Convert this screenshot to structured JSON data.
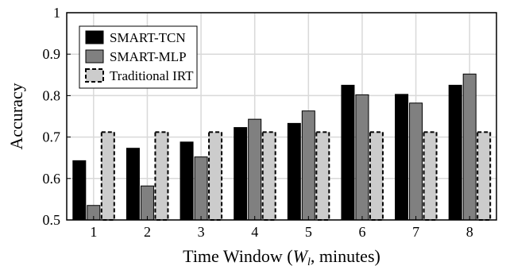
{
  "chart_data": {
    "type": "bar",
    "categories": [
      "1",
      "2",
      "3",
      "4",
      "5",
      "6",
      "7",
      "8"
    ],
    "series": [
      {
        "name": "SMART-TCN",
        "values": [
          0.643,
          0.673,
          0.688,
          0.723,
          0.733,
          0.825,
          0.803,
          0.825
        ],
        "color": "#000000",
        "style": "solid"
      },
      {
        "name": "SMART-MLP",
        "values": [
          0.535,
          0.582,
          0.652,
          0.743,
          0.763,
          0.802,
          0.782,
          0.852
        ],
        "color": "#808080",
        "style": "solid"
      },
      {
        "name": "Traditional IRT",
        "values": [
          0.712,
          0.712,
          0.712,
          0.712,
          0.712,
          0.712,
          0.712,
          0.712
        ],
        "color": "#cccccc",
        "style": "dashed"
      }
    ],
    "title": "",
    "xlabel": "Time Window (",
    "xlabel_var": "W",
    "xlabel_sub": "l",
    "xlabel_tail": ", minutes)",
    "ylabel": "Accuracy",
    "ylim": [
      0.5,
      1
    ],
    "yticks": [
      "0.5",
      "0.6",
      "0.7",
      "0.8",
      "0.9",
      "1"
    ],
    "grid": true,
    "legend_position": "top-left"
  }
}
